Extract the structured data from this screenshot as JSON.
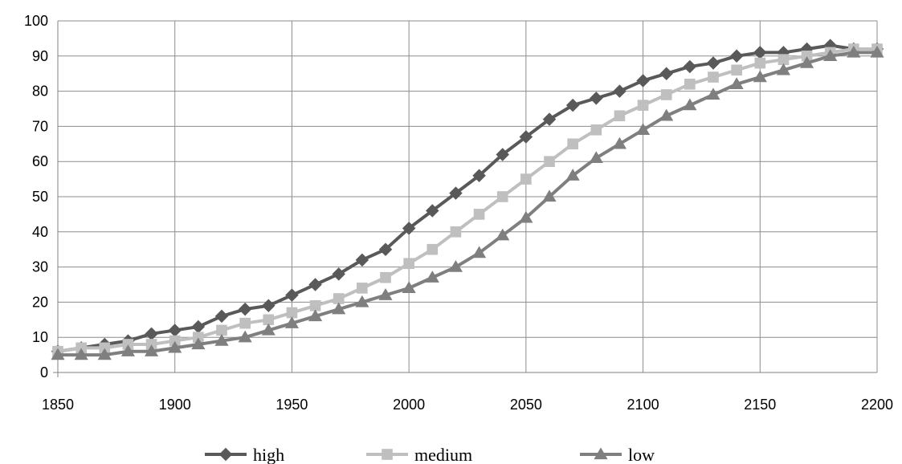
{
  "chart_data": {
    "type": "line",
    "title": "",
    "xlabel": "",
    "ylabel": "",
    "xlim": [
      1850,
      2200
    ],
    "ylim": [
      0,
      100
    ],
    "x_ticks": [
      1850,
      1900,
      1950,
      2000,
      2050,
      2100,
      2150,
      2200
    ],
    "y_ticks": [
      0,
      10,
      20,
      30,
      40,
      50,
      60,
      70,
      80,
      90,
      100
    ],
    "grid": true,
    "legend_position": "bottom",
    "x": [
      1850,
      1860,
      1870,
      1880,
      1890,
      1900,
      1910,
      1920,
      1930,
      1940,
      1950,
      1960,
      1970,
      1980,
      1990,
      2000,
      2010,
      2020,
      2030,
      2040,
      2050,
      2060,
      2070,
      2080,
      2090,
      2100,
      2110,
      2120,
      2130,
      2140,
      2150,
      2160,
      2170,
      2180,
      2190,
      2200
    ],
    "series": [
      {
        "name": "high",
        "marker": "diamond",
        "color": "#595959",
        "values": [
          6,
          7,
          8,
          9,
          11,
          12,
          13,
          16,
          18,
          19,
          22,
          25,
          28,
          32,
          35,
          41,
          46,
          51,
          56,
          62,
          67,
          72,
          76,
          78,
          80,
          83,
          85,
          87,
          88,
          90,
          91,
          91,
          92,
          93,
          92,
          92
        ]
      },
      {
        "name": "medium",
        "marker": "square",
        "color": "#bfbfbf",
        "values": [
          6,
          7,
          7,
          8,
          8,
          9,
          10,
          12,
          14,
          15,
          17,
          19,
          21,
          24,
          27,
          31,
          35,
          40,
          45,
          50,
          55,
          60,
          65,
          69,
          73,
          76,
          79,
          82,
          84,
          86,
          88,
          89,
          90,
          91,
          92,
          92
        ]
      },
      {
        "name": "low",
        "marker": "triangle",
        "color": "#7f7f7f",
        "values": [
          5,
          5,
          5,
          6,
          6,
          7,
          8,
          9,
          10,
          12,
          14,
          16,
          18,
          20,
          22,
          24,
          27,
          30,
          34,
          39,
          44,
          50,
          56,
          61,
          65,
          69,
          73,
          76,
          79,
          82,
          84,
          86,
          88,
          90,
          91,
          91
        ]
      }
    ]
  }
}
